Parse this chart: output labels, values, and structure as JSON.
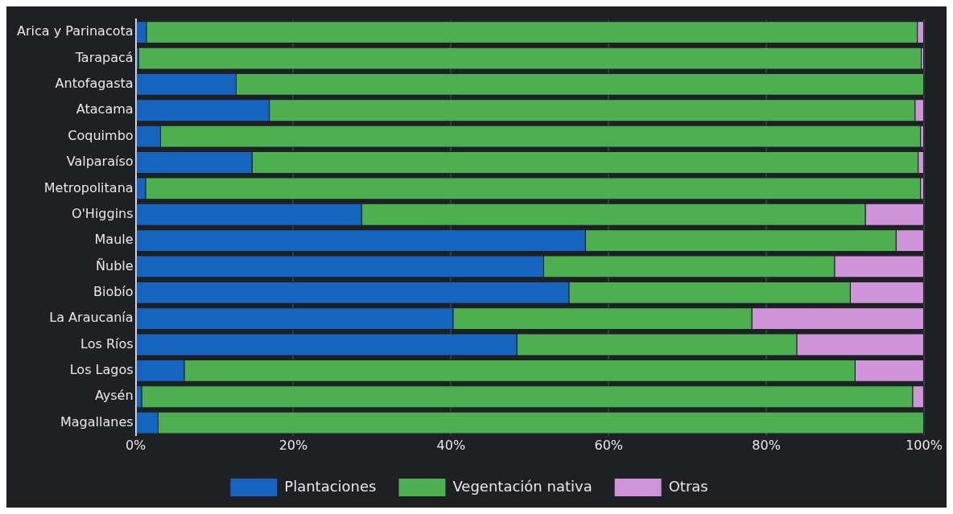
{
  "chart_data": {
    "type": "bar",
    "orientation": "horizontal",
    "stacked": true,
    "categories": [
      "Arica y Parinacota",
      "Tarapacá",
      "Antofagasta",
      "Atacama",
      "Coquimbo",
      "Valparaíso",
      "Metropolitana",
      "O'Higgins",
      "Maule",
      "Ñuble",
      "Biobío",
      "La Araucanía",
      "Los Ríos",
      "Los Lagos",
      "Aysén",
      "Magallanes"
    ],
    "series": [
      {
        "name": "Plantaciones",
        "color": "#1565c0",
        "values": [
          1.4,
          0.4,
          12.8,
          17.0,
          3.2,
          14.8,
          1.3,
          28.7,
          57.1,
          51.8,
          55.0,
          40.3,
          48.4,
          6.2,
          0.8,
          2.9
        ]
      },
      {
        "name": "Vegentación nativa",
        "color": "#4caf50",
        "values": [
          97.8,
          99.3,
          87.2,
          81.9,
          96.4,
          84.5,
          98.3,
          63.9,
          39.4,
          36.9,
          35.7,
          37.9,
          35.5,
          85.1,
          97.8,
          97.1
        ]
      },
      {
        "name": "Otras",
        "color": "#ce93d8",
        "values": [
          0.8,
          0.3,
          0,
          1.1,
          0.4,
          0.7,
          0.4,
          7.4,
          3.5,
          11.3,
          9.3,
          21.8,
          16.1,
          8.7,
          1.4,
          0
        ]
      }
    ],
    "xlim": [
      0,
      100
    ],
    "xticks": [
      {
        "value": 0,
        "label": "0%"
      },
      {
        "value": 20,
        "label": "20%"
      },
      {
        "value": 40,
        "label": "40%"
      },
      {
        "value": 60,
        "label": "60%"
      },
      {
        "value": 80,
        "label": "80%"
      },
      {
        "value": 100,
        "label": "100%"
      }
    ],
    "grid": "x",
    "legend": "bottom"
  }
}
